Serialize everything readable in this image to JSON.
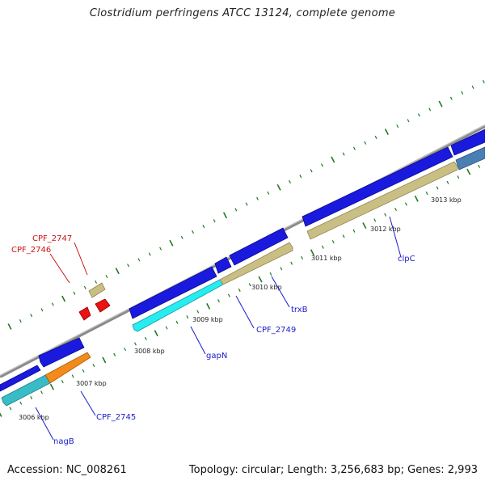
{
  "title": "Clostridium perfringens ATCC 13124, complete genome",
  "footer": {
    "accession": "Accession: NC_008261",
    "topology": "Topology: circular; Length: 3,256,683 bp; Genes: 2,993"
  },
  "colors": {
    "backbone": "#8a8a8a",
    "forward_cds": "#1a1adf",
    "reverse_cds": "#c9bf84",
    "cyan_cds": "#27ecf0",
    "orange_cds": "#f38a1a",
    "steelblue_cds": "#4a7fb4",
    "teal_cds": "#39bcc6",
    "rna": "#ee1111",
    "ticks": "#1f7a1f",
    "blue_label": "#1a1acc",
    "red_label": "#cc1111"
  },
  "scale_labels": [
    "3006 kbp",
    "3007 kbp",
    "3008 kbp",
    "3009 kbp",
    "3010 kbp",
    "3011 kbp",
    "3012 kbp",
    "3013 kbp"
  ],
  "gene_labels": [
    {
      "name": "CPF_2747",
      "color": "red"
    },
    {
      "name": "CPF_2746",
      "color": "red"
    },
    {
      "name": "CPF_2745",
      "color": "blue"
    },
    {
      "name": "nagB",
      "color": "blue"
    },
    {
      "name": "gapN",
      "color": "blue"
    },
    {
      "name": "CPF_2749",
      "color": "blue"
    },
    {
      "name": "trxB",
      "color": "blue"
    },
    {
      "name": "clpC",
      "color": "blue"
    }
  ]
}
